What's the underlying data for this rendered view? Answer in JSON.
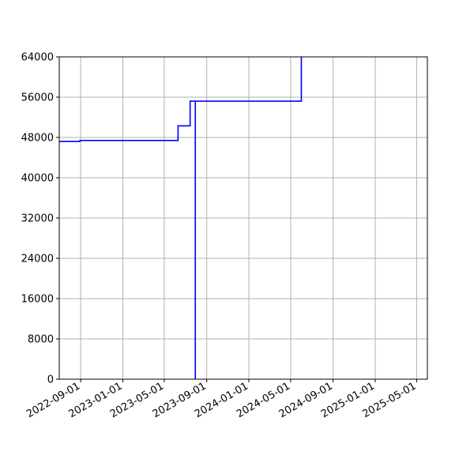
{
  "chart_data": {
    "type": "line",
    "title": "",
    "xlabel": "",
    "ylabel": "",
    "grid": true,
    "x_axis": {
      "type": "date",
      "range": [
        "2022-07-01",
        "2025-06-01"
      ],
      "tick_labels": [
        "2022-09-01",
        "2023-01-01",
        "2023-05-01",
        "2023-09-01",
        "2024-01-01",
        "2024-05-01",
        "2024-09-01",
        "2025-01-01",
        "2025-05-01"
      ]
    },
    "y_axis": {
      "range": [
        0,
        64000
      ],
      "tick_labels": [
        "0",
        "8000",
        "16000",
        "24000",
        "32000",
        "40000",
        "48000",
        "56000",
        "64000"
      ]
    },
    "series": [
      {
        "color": "#0000ff",
        "points": [
          [
            "2022-07-01",
            47200
          ],
          [
            "2022-08-30",
            47200
          ],
          [
            "2022-08-30",
            47400
          ],
          [
            "2023-06-10",
            47400
          ],
          [
            "2023-06-10",
            50300
          ],
          [
            "2023-07-15",
            50300
          ],
          [
            "2023-07-15",
            55200
          ],
          [
            "2023-07-30",
            55200
          ],
          [
            "2023-07-30",
            0
          ],
          [
            "2023-07-30",
            55200
          ],
          [
            "2024-06-01",
            55200
          ],
          [
            "2024-06-01",
            64000
          ]
        ]
      }
    ]
  }
}
